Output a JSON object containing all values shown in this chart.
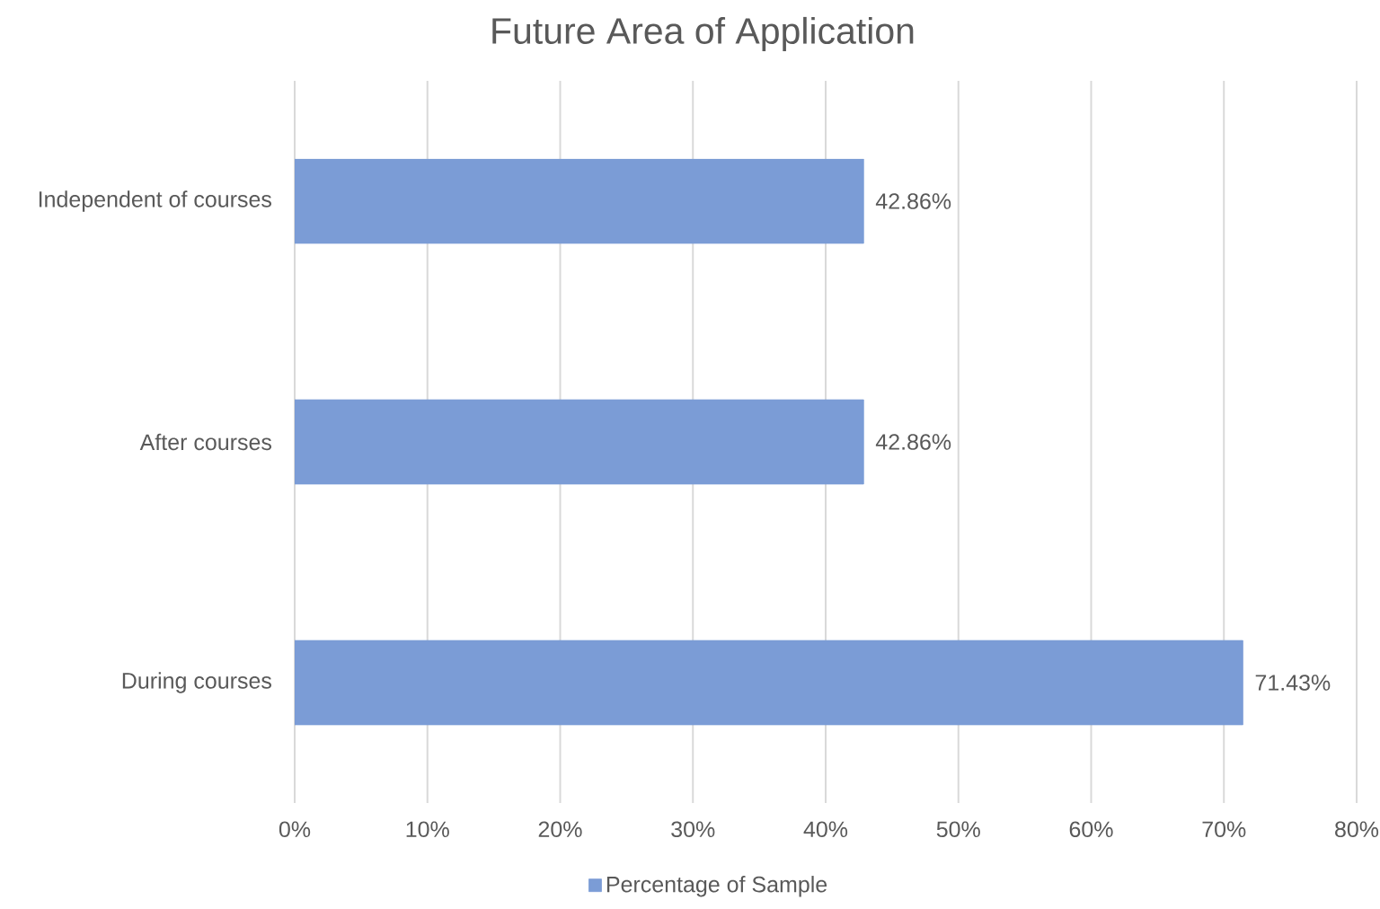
{
  "chart_data": {
    "type": "bar",
    "orientation": "horizontal",
    "title": "Future Area of Application",
    "categories": [
      "Independent of courses",
      "After courses",
      "During courses"
    ],
    "series": [
      {
        "name": "Percentage of Sample",
        "color": "#7b9cd6",
        "values": [
          42.86,
          42.86,
          71.43
        ],
        "value_labels": [
          "42.86%",
          "42.86%",
          "71.43%"
        ]
      }
    ],
    "xlim": [
      0,
      80
    ],
    "xticks": [
      {
        "value": 0,
        "label": "0%"
      },
      {
        "value": 10,
        "label": "10%"
      },
      {
        "value": 20,
        "label": "20%"
      },
      {
        "value": 30,
        "label": "30%"
      },
      {
        "value": 40,
        "label": "40%"
      },
      {
        "value": 50,
        "label": "50%"
      },
      {
        "value": 60,
        "label": "60%"
      },
      {
        "value": 70,
        "label": "70%"
      },
      {
        "value": 80,
        "label": "80%"
      }
    ],
    "grid": "x",
    "legend": "bottom"
  }
}
